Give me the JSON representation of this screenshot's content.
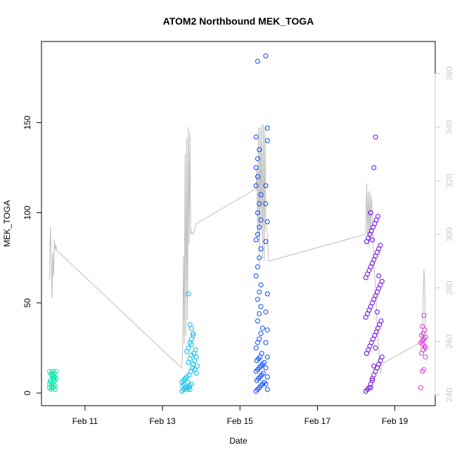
{
  "chart_data": {
    "type": "scatter",
    "title": "ATOM2 Northbound MEK_TOGA",
    "xlabel": "Date",
    "ylabel": "MEK_TOGA",
    "x_ticks": [
      "Feb 11",
      "Feb 13",
      "Feb 15",
      "Feb 17",
      "Feb 19"
    ],
    "y_ticks": [
      0,
      50,
      100,
      150
    ],
    "y2_ticks": [
      240,
      260,
      280,
      300,
      320,
      340,
      360
    ],
    "xlim": [
      "2019-02-09 21:00",
      "2019-02-20 01:00"
    ],
    "ylim": [
      -7,
      195
    ],
    "y2lim": [
      236,
      372
    ],
    "colors": {
      "group_1": "#00e5a8",
      "group_2": "#00b8f0",
      "group_3": "#0044ff",
      "group_4": "#6a00e8",
      "group_5": "#dd33dd",
      "secondary_line": "#bdbdbd",
      "secondary_axis": "#c8c8c8"
    },
    "groups": [
      {
        "color": "#00e5a8",
        "x": [
          "2019-02-10 02:00",
          "2019-02-10 03:00",
          "2019-02-10 04:00",
          "2019-02-10 05:00",
          "2019-02-10 06:00",
          "2019-02-10 02:30",
          "2019-02-10 03:30",
          "2019-02-10 04:30",
          "2019-02-10 05:30",
          "2019-02-10 02:00",
          "2019-02-10 03:00",
          "2019-02-10 04:00",
          "2019-02-10 05:00",
          "2019-02-10 06:00",
          "2019-02-10 02:30",
          "2019-02-10 03:30",
          "2019-02-10 04:30",
          "2019-02-10 05:30",
          "2019-02-10 03:00",
          "2019-02-10 04:00",
          "2019-02-10 05:00",
          "2019-02-10 02:00",
          "2019-02-10 06:00",
          "2019-02-10 03:30",
          "2019-02-10 04:30"
        ],
        "y": [
          12,
          11,
          10,
          9,
          8,
          7,
          6,
          5,
          4,
          3,
          2,
          12,
          11,
          8,
          6,
          4,
          3,
          2,
          10,
          9,
          7,
          5,
          12,
          3,
          8
        ]
      },
      {
        "color": "#00b8f0",
        "x": [
          "2019-02-13 12:00",
          "2019-02-13 13:00",
          "2019-02-13 14:00",
          "2019-02-13 12:30",
          "2019-02-13 13:30",
          "2019-02-13 12:00",
          "2019-02-13 13:00",
          "2019-02-13 14:00",
          "2019-02-13 15:00",
          "2019-02-13 16:00",
          "2019-02-13 17:00",
          "2019-02-13 18:00",
          "2019-02-13 15:30",
          "2019-02-13 16:30",
          "2019-02-13 17:30",
          "2019-02-13 18:30",
          "2019-02-13 19:00",
          "2019-02-13 20:00",
          "2019-02-13 21:00",
          "2019-02-13 19:30",
          "2019-02-13 20:30",
          "2019-02-13 21:30",
          "2019-02-13 16:00",
          "2019-02-13 17:00",
          "2019-02-13 18:00",
          "2019-02-13 15:00",
          "2019-02-13 16:00",
          "2019-02-13 17:00",
          "2019-02-13 18:00",
          "2019-02-13 19:00",
          "2019-02-13 20:00",
          "2019-02-13 21:00",
          "2019-02-13 15:00",
          "2019-02-13 16:00",
          "2019-02-13 17:00",
          "2019-02-13 18:00",
          "2019-02-13 19:00",
          "2019-02-13 16:00",
          "2019-02-13 17:00",
          "2019-02-13 18:00"
        ],
        "y": [
          1,
          2,
          3,
          4,
          5,
          6,
          7,
          8,
          2,
          3,
          4,
          5,
          6,
          10,
          12,
          14,
          16,
          18,
          20,
          22,
          24,
          15,
          17,
          19,
          21,
          23,
          25,
          28,
          30,
          32,
          13,
          11,
          9,
          55,
          38,
          36,
          33,
          3,
          2,
          27
        ]
      },
      {
        "color": "#0044ff",
        "x": [
          "2019-02-15 10:00",
          "2019-02-15 11:00",
          "2019-02-15 12:00",
          "2019-02-15 13:00",
          "2019-02-15 14:00",
          "2019-02-15 15:00",
          "2019-02-15 10:30",
          "2019-02-15 11:30",
          "2019-02-15 12:30",
          "2019-02-15 13:30",
          "2019-02-15 14:30",
          "2019-02-15 10:00",
          "2019-02-15 11:00",
          "2019-02-15 12:00",
          "2019-02-15 13:00",
          "2019-02-15 14:00",
          "2019-02-15 15:00",
          "2019-02-15 10:30",
          "2019-02-15 11:30",
          "2019-02-15 12:30",
          "2019-02-15 13:30",
          "2019-02-15 10:00",
          "2019-02-15 11:00",
          "2019-02-15 12:00",
          "2019-02-15 13:00",
          "2019-02-15 14:00",
          "2019-02-15 11:00",
          "2019-02-15 12:00",
          "2019-02-15 13:00",
          "2019-02-15 11:00",
          "2019-02-15 12:00",
          "2019-02-15 13:00",
          "2019-02-15 10:00",
          "2019-02-15 11:00",
          "2019-02-15 12:00",
          "2019-02-15 13:00",
          "2019-02-15 10:00",
          "2019-02-15 11:00",
          "2019-02-15 12:00",
          "2019-02-15 13:00",
          "2019-02-15 11:00",
          "2019-02-15 12:00",
          "2019-02-15 13:00",
          "2019-02-15 10:00",
          "2019-02-15 11:00",
          "2019-02-15 10:00",
          "2019-02-15 11:00",
          "2019-02-15 12:00",
          "2019-02-15 10:00",
          "2019-02-15 11:00",
          "2019-02-15 16:00",
          "2019-02-15 17:00",
          "2019-02-15 16:00",
          "2019-02-15 17:00",
          "2019-02-15 16:00",
          "2019-02-15 17:00",
          "2019-02-15 16:00",
          "2019-02-15 17:00",
          "2019-02-15 16:00",
          "2019-02-15 17:00",
          "2019-02-15 16:00",
          "2019-02-15 17:00",
          "2019-02-15 16:00",
          "2019-02-15 16:00",
          "2019-02-15 17:00",
          "2019-02-15 17:00"
        ],
        "y": [
          1,
          2,
          3,
          4,
          5,
          6,
          7,
          8,
          9,
          10,
          11,
          12,
          13,
          14,
          15,
          16,
          17,
          18,
          19,
          20,
          22,
          25,
          28,
          30,
          33,
          36,
          40,
          44,
          48,
          52,
          56,
          60,
          65,
          70,
          75,
          80,
          85,
          88,
          92,
          96,
          100,
          105,
          110,
          115,
          120,
          125,
          130,
          135,
          142,
          184,
          187,
          2,
          5,
          9,
          14,
          20,
          28,
          35,
          45,
          55,
          84,
          95,
          105,
          115,
          140,
          147
        ]
      },
      {
        "color": "#6a00e8",
        "x": [
          "2019-02-18 06:00",
          "2019-02-18 07:00",
          "2019-02-18 08:00",
          "2019-02-18 09:00",
          "2019-02-18 10:00",
          "2019-02-18 11:00",
          "2019-02-18 12:00",
          "2019-02-18 13:00",
          "2019-02-18 14:00",
          "2019-02-18 15:00",
          "2019-02-18 16:00",
          "2019-02-18 06:30",
          "2019-02-18 07:30",
          "2019-02-18 08:30",
          "2019-02-18 09:30",
          "2019-02-18 10:30",
          "2019-02-18 11:30",
          "2019-02-18 12:30",
          "2019-02-18 13:30",
          "2019-02-18 14:30",
          "2019-02-18 15:30",
          "2019-02-18 06:00",
          "2019-02-18 07:00",
          "2019-02-18 08:00",
          "2019-02-18 09:00",
          "2019-02-18 10:00",
          "2019-02-18 11:00",
          "2019-02-18 12:00",
          "2019-02-18 13:00",
          "2019-02-18 14:00",
          "2019-02-18 15:00",
          "2019-02-18 16:00",
          "2019-02-18 06:00",
          "2019-02-18 07:00",
          "2019-02-18 08:00",
          "2019-02-18 09:00",
          "2019-02-18 10:00",
          "2019-02-18 11:00",
          "2019-02-18 12:00",
          "2019-02-18 13:00",
          "2019-02-18 14:00",
          "2019-02-18 15:00",
          "2019-02-18 06:30",
          "2019-02-18 07:30",
          "2019-02-18 08:30",
          "2019-02-18 09:30",
          "2019-02-18 10:30",
          "2019-02-18 11:30",
          "2019-02-18 12:30",
          "2019-02-18 13:30",
          "2019-02-18 09:00",
          "2019-02-18 10:00",
          "2019-02-18 11:00",
          "2019-02-18 12:00",
          "2019-02-18 13:00",
          "2019-02-18 14:00",
          "2019-02-18 10:00",
          "2019-02-18 11:00",
          "2019-02-18 12:00",
          "2019-02-18 09:00"
        ],
        "y": [
          1,
          2,
          3,
          5,
          8,
          10,
          12,
          14,
          16,
          18,
          20,
          22,
          24,
          26,
          28,
          30,
          32,
          34,
          36,
          38,
          40,
          42,
          44,
          46,
          48,
          50,
          52,
          54,
          56,
          58,
          60,
          62,
          64,
          66,
          68,
          70,
          72,
          74,
          76,
          78,
          80,
          82,
          84,
          86,
          88,
          90,
          92,
          94,
          96,
          98,
          3,
          7,
          15,
          25,
          45,
          65,
          85,
          125,
          142,
          100
        ]
      },
      {
        "color": "#dd33dd",
        "x": [
          "2019-02-19 16:00",
          "2019-02-19 17:00",
          "2019-02-19 18:00",
          "2019-02-19 19:00",
          "2019-02-19 16:30",
          "2019-02-19 17:30",
          "2019-02-19 18:30",
          "2019-02-19 16:00",
          "2019-02-19 17:00",
          "2019-02-19 18:00",
          "2019-02-19 19:00",
          "2019-02-19 16:30",
          "2019-02-19 17:30",
          "2019-02-19 18:30",
          "2019-02-19 17:00",
          "2019-02-19 18:00",
          "2019-02-19 19:00",
          "2019-02-19 17:00",
          "2019-02-19 18:00"
        ],
        "y": [
          3,
          12,
          13,
          20,
          22,
          24,
          26,
          28,
          29,
          30,
          31,
          32,
          33,
          35,
          37,
          43,
          25,
          27,
          30
        ]
      }
    ],
    "secondary_series": {
      "x": [
        "2019-02-10 02:00",
        "2019-02-10 02:30",
        "2019-02-10 03:00",
        "2019-02-10 03:30",
        "2019-02-10 04:00",
        "2019-02-10 04:30",
        "2019-02-10 05:00",
        "2019-02-10 05:30",
        "2019-02-10 06:00",
        "2019-02-10 06:30",
        "2019-02-13 12:00",
        "2019-02-13 12:30",
        "2019-02-13 13:00",
        "2019-02-13 13:30",
        "2019-02-13 14:00",
        "2019-02-13 14:30",
        "2019-02-13 15:00",
        "2019-02-13 15:30",
        "2019-02-13 16:00",
        "2019-02-13 16:30",
        "2019-02-13 17:00",
        "2019-02-13 17:30",
        "2019-02-13 18:00",
        "2019-02-13 19:00",
        "2019-02-13 20:00",
        "2019-02-13 21:00",
        "2019-02-15 10:00",
        "2019-02-15 10:30",
        "2019-02-15 11:00",
        "2019-02-15 11:30",
        "2019-02-15 12:00",
        "2019-02-15 12:30",
        "2019-02-15 13:00",
        "2019-02-15 13:30",
        "2019-02-15 14:00",
        "2019-02-15 14:30",
        "2019-02-15 15:00",
        "2019-02-15 15:30",
        "2019-02-15 16:00",
        "2019-02-15 16:30",
        "2019-02-15 17:00",
        "2019-02-15 17:30",
        "2019-02-15 18:00",
        "2019-02-18 06:00",
        "2019-02-18 06:30",
        "2019-02-18 07:00",
        "2019-02-18 07:30",
        "2019-02-18 08:00",
        "2019-02-18 08:30",
        "2019-02-18 09:00",
        "2019-02-18 09:30",
        "2019-02-18 10:00",
        "2019-02-18 11:00",
        "2019-02-18 12:00",
        "2019-02-18 13:00",
        "2019-02-18 14:00",
        "2019-02-18 15:00",
        "2019-02-18 16:00",
        "2019-02-18 17:00",
        "2019-02-19 17:00",
        "2019-02-19 18:00",
        "2019-02-19 18:30",
        "2019-02-19 19:00"
      ],
      "y": [
        283,
        303,
        293,
        276,
        293,
        284,
        298,
        294,
        296,
        294,
        250,
        257,
        292,
        259,
        330,
        262,
        336,
        268,
        340,
        296,
        338,
        300,
        301,
        300,
        302,
        304,
        317,
        325,
        299,
        340,
        289,
        340,
        303,
        341,
        291,
        341,
        290,
        340,
        302,
        302,
        300,
        293,
        290,
        300,
        319,
        300,
        316,
        295,
        316,
        300,
        314,
        308,
        288,
        280,
        266,
        258,
        248,
        251,
        252,
        260,
        287,
        282,
        256
      ]
    }
  }
}
